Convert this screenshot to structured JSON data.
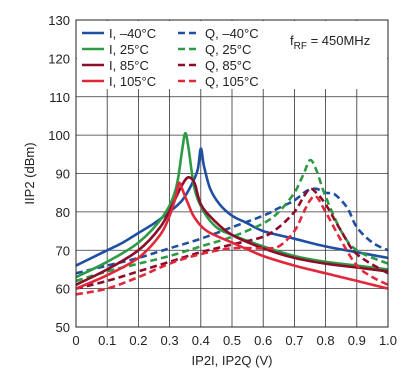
{
  "chart_data": {
    "type": "line",
    "xlabel": "IP2I, IP2Q (V)",
    "ylabel": "IIP2 (dBm)",
    "xlim": [
      0,
      1.0
    ],
    "ylim": [
      50,
      130
    ],
    "xticks": [
      "0",
      "0.1",
      "0.2",
      "0.3",
      "0.4",
      "0.5",
      "0.6",
      "0.7",
      "0.8",
      "0.9",
      "1.0"
    ],
    "yticks": [
      "50",
      "60",
      "70",
      "80",
      "90",
      "100",
      "110",
      "120",
      "130"
    ],
    "grid": true,
    "legend_position": "top-left",
    "annotation": {
      "base": "f",
      "sub": "RF",
      "tail": " = 450MHz"
    },
    "series": [
      {
        "name": "I, –40°C",
        "color": "#1f4fa3",
        "style": "solid",
        "x": [
          0,
          0.05,
          0.1,
          0.15,
          0.2,
          0.25,
          0.3,
          0.34,
          0.37,
          0.39,
          0.4,
          0.41,
          0.43,
          0.46,
          0.5,
          0.55,
          0.6,
          0.7,
          0.8,
          0.9,
          1.0
        ],
        "y": [
          66,
          68,
          70,
          72,
          74.5,
          77,
          80,
          83,
          87,
          91,
          96.5,
          92,
          86,
          82,
          79,
          77,
          75,
          73,
          71,
          69.5,
          68
        ]
      },
      {
        "name": "Q, –40°C",
        "color": "#1f4fa3",
        "style": "dashed",
        "x": [
          0,
          0.1,
          0.2,
          0.3,
          0.4,
          0.5,
          0.6,
          0.65,
          0.7,
          0.74,
          0.77,
          0.8,
          0.83,
          0.87,
          0.9,
          0.95,
          1.0
        ],
        "y": [
          64,
          66,
          68,
          70.5,
          73,
          76,
          79,
          81,
          83,
          85.5,
          86,
          85,
          84.5,
          81,
          76,
          72,
          70
        ]
      },
      {
        "name": "I, 25°C",
        "color": "#2e9a46",
        "style": "solid",
        "x": [
          0,
          0.1,
          0.2,
          0.28,
          0.32,
          0.34,
          0.35,
          0.36,
          0.38,
          0.41,
          0.45,
          0.5,
          0.6,
          0.7,
          0.8,
          0.9,
          1.0
        ],
        "y": [
          63,
          67,
          72,
          79,
          86,
          96,
          100.5,
          97,
          86,
          80,
          76,
          74,
          71,
          68.5,
          67,
          66,
          65
        ]
      },
      {
        "name": "Q, 25°C",
        "color": "#2e9a46",
        "style": "dashed",
        "x": [
          0,
          0.1,
          0.2,
          0.3,
          0.4,
          0.5,
          0.6,
          0.65,
          0.7,
          0.73,
          0.75,
          0.77,
          0.8,
          0.85,
          0.9,
          1.0
        ],
        "y": [
          62,
          64.5,
          66.5,
          68.5,
          71,
          73.5,
          77,
          80,
          85,
          90,
          93.5,
          91,
          84,
          75,
          70,
          66.5
        ]
      },
      {
        "name": "I, 85°C",
        "color": "#8b0d2a",
        "style": "solid",
        "x": [
          0,
          0.1,
          0.2,
          0.27,
          0.31,
          0.34,
          0.36,
          0.38,
          0.4,
          0.44,
          0.5,
          0.6,
          0.7,
          0.8,
          0.9,
          1.0
        ],
        "y": [
          61,
          65,
          70,
          76,
          82,
          87,
          89,
          87.5,
          82,
          78,
          74,
          70.5,
          68,
          66.5,
          65.5,
          64.5
        ]
      },
      {
        "name": "Q, 85°C",
        "color": "#8b0d2a",
        "style": "dashed",
        "x": [
          0,
          0.1,
          0.2,
          0.3,
          0.4,
          0.5,
          0.6,
          0.65,
          0.7,
          0.73,
          0.75,
          0.77,
          0.8,
          0.85,
          0.9,
          1.0
        ],
        "y": [
          60,
          62,
          64.5,
          67,
          69.5,
          71.5,
          73.5,
          76,
          80,
          84,
          86,
          85,
          82,
          75,
          69,
          64
        ]
      },
      {
        "name": "I, 105°C",
        "color": "#e0283a",
        "style": "solid",
        "x": [
          0,
          0.1,
          0.2,
          0.27,
          0.3,
          0.32,
          0.33,
          0.34,
          0.36,
          0.38,
          0.42,
          0.5,
          0.6,
          0.7,
          0.8,
          0.9,
          1.0
        ],
        "y": [
          60,
          63.5,
          68,
          74,
          79,
          84,
          87.5,
          86,
          82,
          78.5,
          75,
          72,
          68.5,
          66,
          64,
          62,
          60
        ]
      },
      {
        "name": "Q, 105°C",
        "color": "#e0283a",
        "style": "dashed",
        "x": [
          0,
          0.1,
          0.2,
          0.3,
          0.4,
          0.5,
          0.6,
          0.65,
          0.7,
          0.73,
          0.75,
          0.77,
          0.8,
          0.85,
          0.9,
          0.95,
          1.0
        ],
        "y": [
          58.5,
          60,
          63,
          66.5,
          69,
          70.5,
          70.5,
          71,
          75,
          80,
          83,
          84,
          80,
          72.5,
          66,
          63,
          61
        ]
      }
    ]
  }
}
